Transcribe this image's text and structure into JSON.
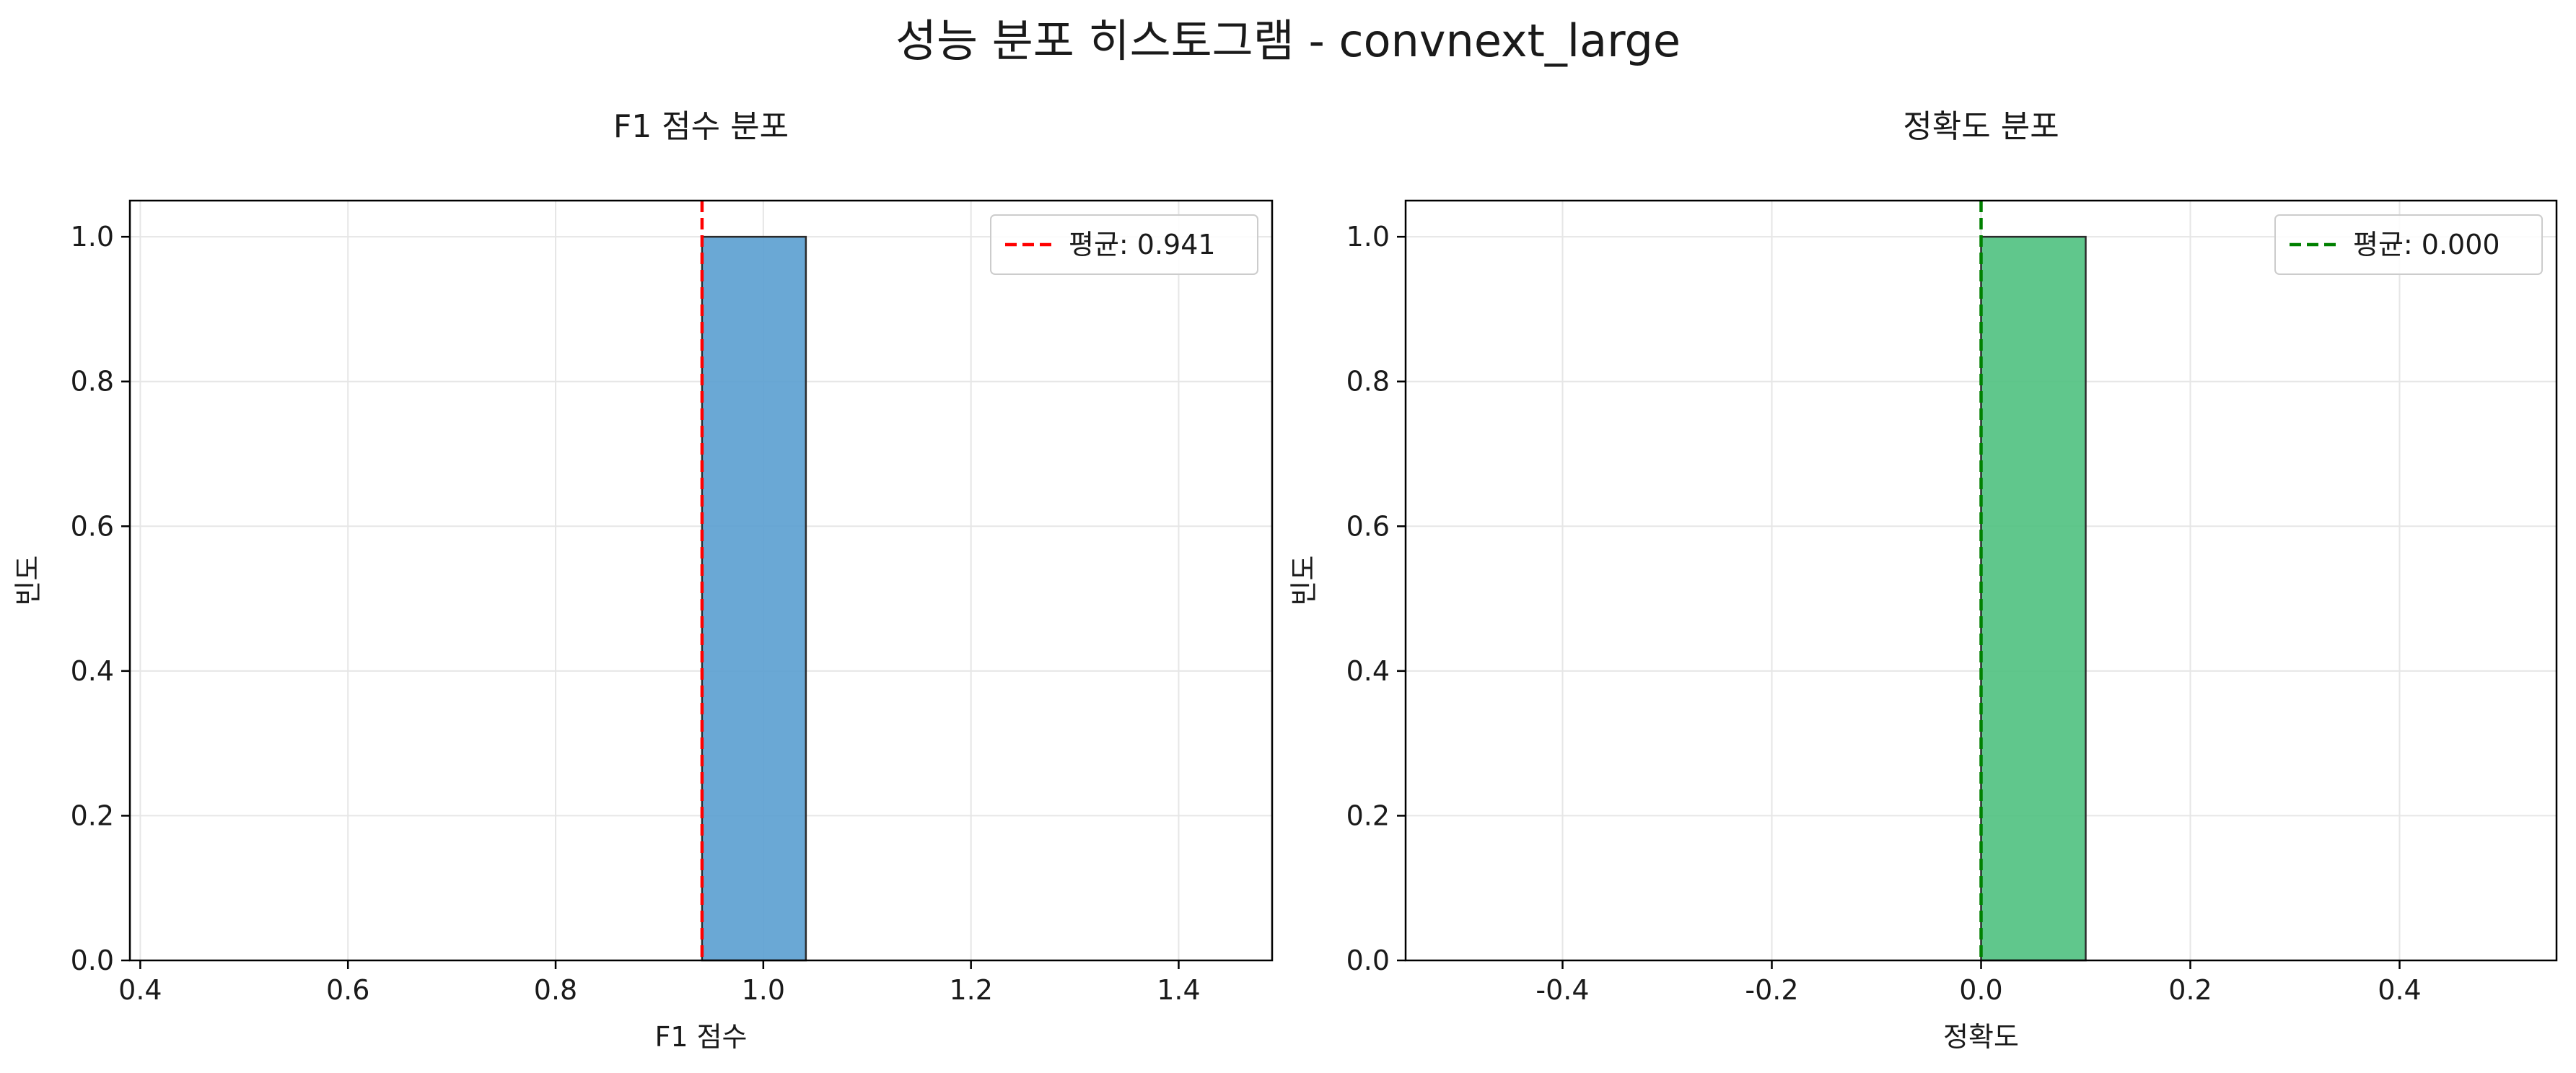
{
  "figure": {
    "suptitle": "성능 분포 히스토그램 - convnext_large"
  },
  "chart_data": [
    {
      "type": "bar",
      "subtype": "histogram",
      "title": "F1 점수 분포",
      "xlabel": "F1 점수",
      "ylabel": "빈도",
      "xlim": [
        0.39,
        1.49
      ],
      "ylim": [
        0.0,
        1.05
      ],
      "xticks": [
        0.4,
        0.6,
        0.8,
        1.0,
        1.2,
        1.4
      ],
      "xtick_labels": [
        "0.4",
        "0.6",
        "0.8",
        "1.0",
        "1.2",
        "1.4"
      ],
      "yticks": [
        0.0,
        0.2,
        0.4,
        0.6,
        0.8,
        1.0
      ],
      "ytick_labels": [
        "0.0",
        "0.2",
        "0.4",
        "0.6",
        "0.8",
        "1.0"
      ],
      "bin_edges": [
        0.441,
        0.541,
        0.641,
        0.741,
        0.841,
        0.941,
        1.041,
        1.141,
        1.241,
        1.341,
        1.441
      ],
      "counts": [
        0,
        0,
        0,
        0,
        0,
        1,
        0,
        0,
        0,
        0
      ],
      "bar_color": "#5a9fd0",
      "mean_line": {
        "value": 0.941,
        "color": "#ff0000",
        "label": "평균: 0.941"
      },
      "legend_position": "top-right",
      "grid": true
    },
    {
      "type": "bar",
      "subtype": "histogram",
      "title": "정확도 분포",
      "xlabel": "정확도",
      "ylabel": "빈도",
      "xlim": [
        -0.55,
        0.55
      ],
      "ylim": [
        0.0,
        1.05
      ],
      "xticks": [
        -0.4,
        -0.2,
        0.0,
        0.2,
        0.4
      ],
      "xtick_labels": [
        "-0.4",
        "-0.2",
        "0.0",
        "0.2",
        "0.4"
      ],
      "yticks": [
        0.0,
        0.2,
        0.4,
        0.6,
        0.8,
        1.0
      ],
      "ytick_labels": [
        "0.0",
        "0.2",
        "0.4",
        "0.6",
        "0.8",
        "1.0"
      ],
      "bin_edges": [
        -0.5,
        -0.4,
        -0.3,
        -0.2,
        -0.1,
        0.0,
        0.1,
        0.2,
        0.3,
        0.4,
        0.5
      ],
      "counts": [
        0,
        0,
        0,
        0,
        0,
        1,
        0,
        0,
        0,
        0
      ],
      "bar_color": "#4fc17f",
      "mean_line": {
        "value": 0.0,
        "color": "#008000",
        "label": "평균: 0.000"
      },
      "legend_position": "top-right",
      "grid": true
    }
  ]
}
